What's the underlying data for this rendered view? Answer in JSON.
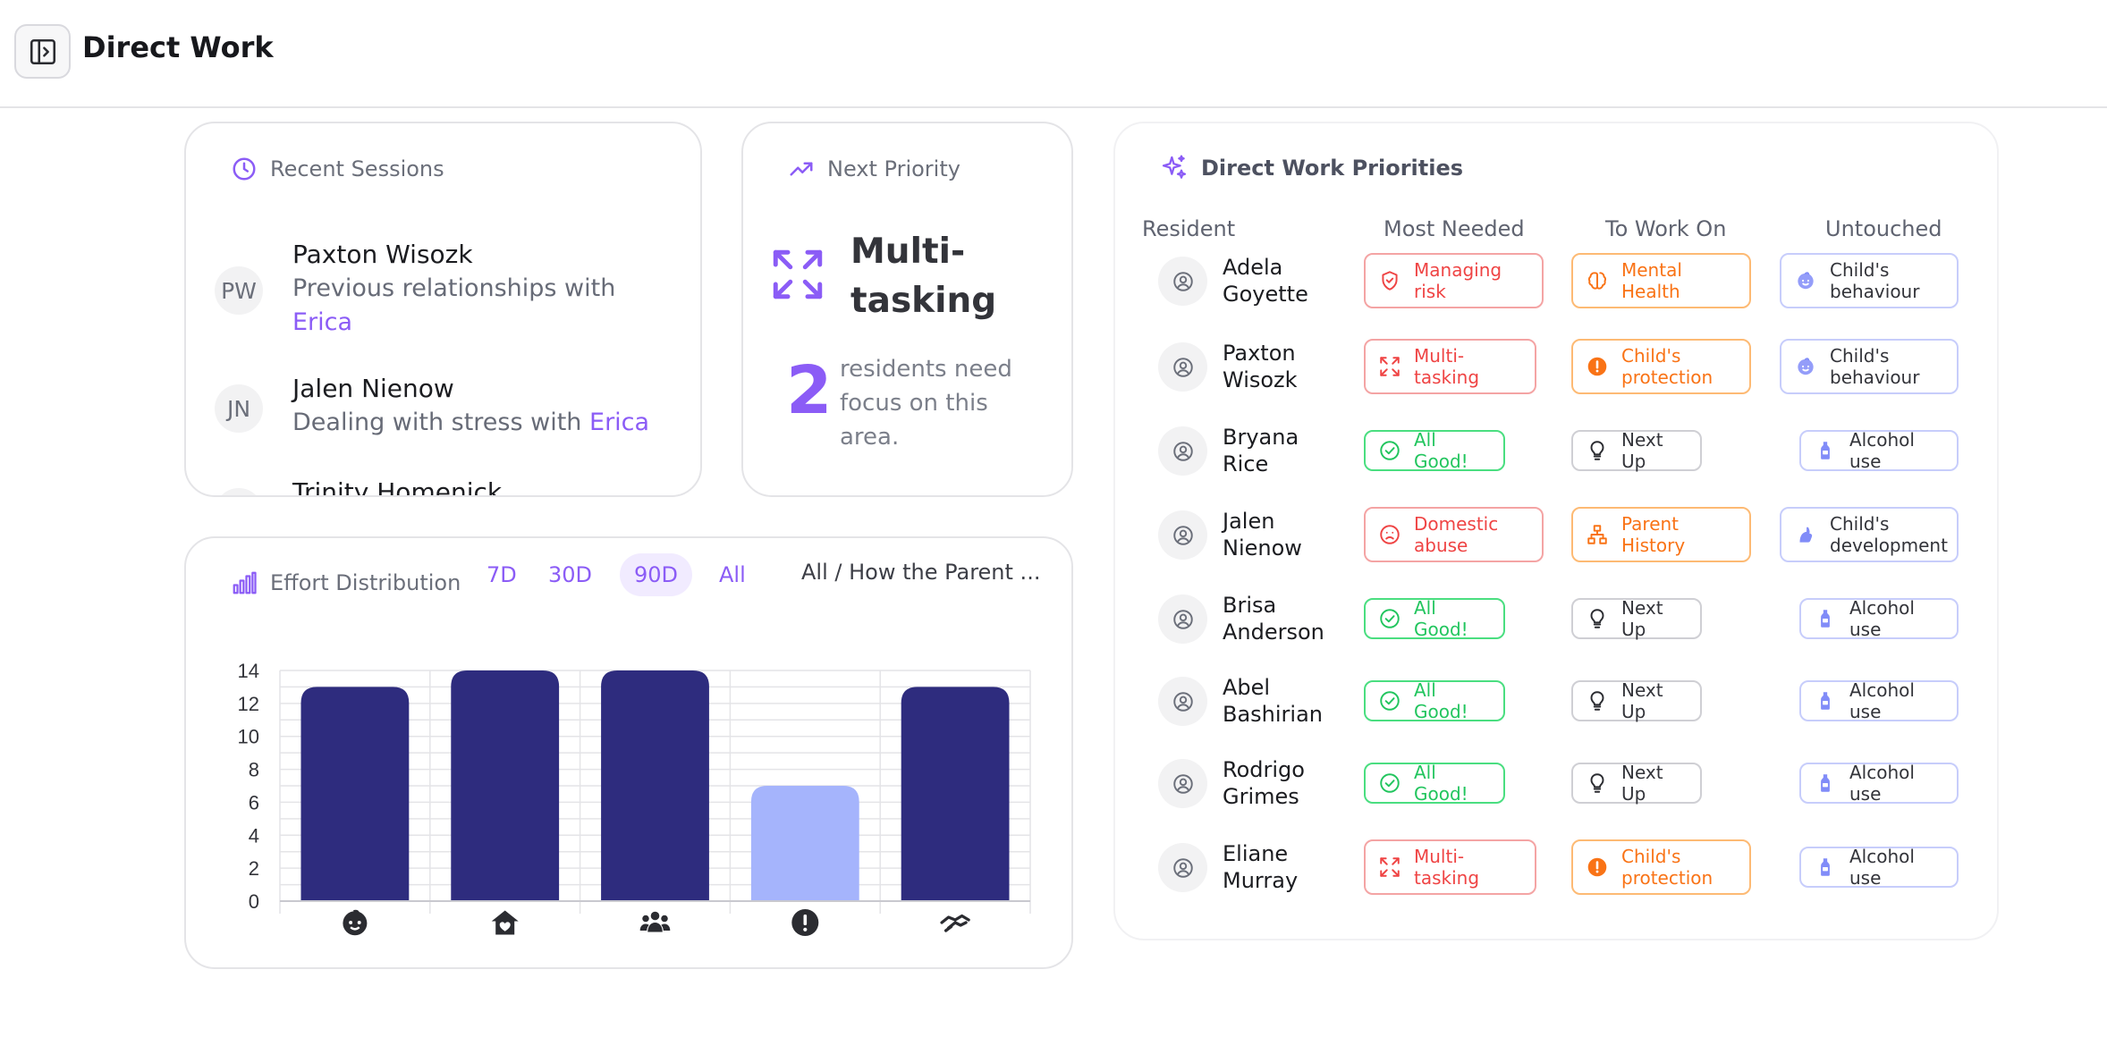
{
  "header": {
    "title": "Direct Work"
  },
  "recent_sessions": {
    "title": "Recent Sessions",
    "items": [
      {
        "initials": "PW",
        "name": "Paxton Wisozk",
        "desc": "Previous relationships with ",
        "with": "Erica"
      },
      {
        "initials": "JN",
        "name": "Jalen Nienow",
        "desc": "Dealing with stress with ",
        "with": "Erica"
      },
      {
        "initials": "TH",
        "name": "Trinity Homenick",
        "desc": "",
        "with": ""
      }
    ]
  },
  "next_priority": {
    "title": "Next Priority",
    "focus": "Multi-tasking",
    "count": "2",
    "count_text": "residents need focus on this area."
  },
  "effort_distribution": {
    "title": "Effort Distribution",
    "ranges": [
      "7D",
      "30D",
      "90D",
      "All"
    ],
    "active_range": "90D",
    "filter_label": "All / How the Parent ..."
  },
  "chart_data": {
    "type": "bar",
    "categories": [
      "child-icon",
      "home-icon",
      "group-icon",
      "alert-icon",
      "handshake-icon"
    ],
    "values": [
      13,
      14,
      14,
      7,
      13
    ],
    "highlighted_index": 3,
    "colors": {
      "default": "#2e2c7e",
      "highlight": "#a5b4fc"
    },
    "ylim": [
      0,
      14
    ],
    "yticks": [
      "0",
      "2",
      "4",
      "6",
      "8",
      "10",
      "12",
      "14"
    ],
    "grid": true,
    "title": "",
    "xlabel": "",
    "ylabel": ""
  },
  "priorities": {
    "title": "Direct Work Priorities",
    "columns": [
      "Resident",
      "Most Needed",
      "To Work On",
      "Untouched"
    ],
    "rows": [
      {
        "name": "Adela Goyette",
        "most": {
          "label": "Managing risk",
          "style": "red",
          "icon": "shield-icon"
        },
        "work": {
          "label": "Mental Health",
          "style": "orange",
          "icon": "brain-icon"
        },
        "untouched": {
          "label": "Child's behaviour",
          "style": "blue",
          "icon": "child-face-icon"
        }
      },
      {
        "name": "Paxton Wisozk",
        "most": {
          "label": "Multi-tasking",
          "style": "red",
          "icon": "expand-arrows-icon"
        },
        "work": {
          "label": "Child's protection",
          "style": "orange",
          "icon": "alert-icon"
        },
        "untouched": {
          "label": "Child's behaviour",
          "style": "blue",
          "icon": "child-face-icon"
        }
      },
      {
        "name": "Bryana Rice",
        "most": {
          "label": "All Good!",
          "style": "green",
          "icon": "check-circle-icon"
        },
        "work": {
          "label": "Next Up",
          "style": "gray",
          "icon": "lightbulb-icon"
        },
        "untouched": {
          "label": "Alcohol use",
          "style": "blue",
          "icon": "bottle-icon"
        }
      },
      {
        "name": "Jalen Nienow",
        "most": {
          "label": "Domestic abuse",
          "style": "red",
          "icon": "sad-face-icon"
        },
        "work": {
          "label": "Parent History",
          "style": "orange",
          "icon": "hierarchy-icon"
        },
        "untouched": {
          "label": "Child's development",
          "style": "blue",
          "icon": "growth-icon"
        }
      },
      {
        "name": "Brisa Anderson",
        "most": {
          "label": "All Good!",
          "style": "green",
          "icon": "check-circle-icon"
        },
        "work": {
          "label": "Next Up",
          "style": "gray",
          "icon": "lightbulb-icon"
        },
        "untouched": {
          "label": "Alcohol use",
          "style": "blue",
          "icon": "bottle-icon"
        }
      },
      {
        "name": "Abel Bashirian",
        "most": {
          "label": "All Good!",
          "style": "green",
          "icon": "check-circle-icon"
        },
        "work": {
          "label": "Next Up",
          "style": "gray",
          "icon": "lightbulb-icon"
        },
        "untouched": {
          "label": "Alcohol use",
          "style": "blue",
          "icon": "bottle-icon"
        }
      },
      {
        "name": "Rodrigo Grimes",
        "most": {
          "label": "All Good!",
          "style": "green",
          "icon": "check-circle-icon"
        },
        "work": {
          "label": "Next Up",
          "style": "gray",
          "icon": "lightbulb-icon"
        },
        "untouched": {
          "label": "Alcohol use",
          "style": "blue",
          "icon": "bottle-icon"
        }
      },
      {
        "name": "Eliane Murray",
        "most": {
          "label": "Multi-tasking",
          "style": "red",
          "icon": "expand-arrows-icon"
        },
        "work": {
          "label": "Child's protection",
          "style": "orange",
          "icon": "alert-icon"
        },
        "untouched": {
          "label": "Alcohol use",
          "style": "blue",
          "icon": "bottle-icon"
        }
      }
    ]
  },
  "colors": {
    "accent": "#8b5cf6",
    "bar": "#2e2c7e",
    "bar_highlight": "#a5b4fc"
  }
}
